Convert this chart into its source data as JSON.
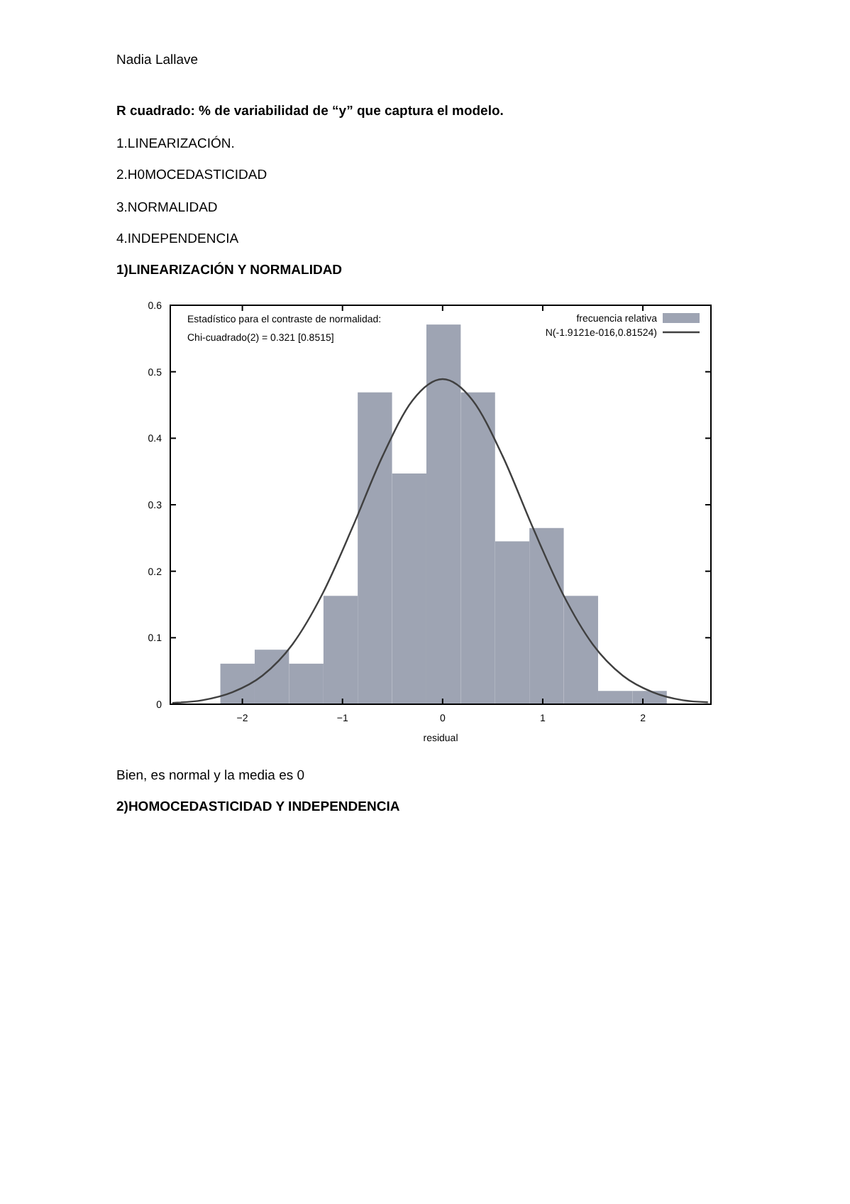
{
  "chart_data": {
    "type": "histogram",
    "title": "1)LINEARIZACIÓN Y NORMALIDAD",
    "xlabel": "residual",
    "annotations": [
      "Nadia Lallave",
      "R cuadrado: % de variabilidad de “y” que captura el modelo.",
      "1.LINEARIZACIÓN.",
      "2.H0MOCEDASTICIDAD",
      "3.NORMALIDAD",
      "4.INDEPENDENCIA",
      "Estadístico para el contraste de normalidad:",
      "Chi-cuadrado(2) = 0.321 [0.8515]",
      "Bien, es normal y la media es 0",
      "2)HOMOCEDASTICIDAD Y INDEPENDENCIA"
    ],
    "series": [
      {
        "name": "frecuencia relativa",
        "color": "#9ea4b3",
        "bins": [
          -2.22,
          -1.877,
          -1.534,
          -1.19,
          -0.848,
          -0.505,
          -0.162,
          0.181,
          0.524,
          0.867,
          1.21,
          1.553,
          1.896,
          2.239
        ],
        "values": [
          0.061,
          0.082,
          0.061,
          0.163,
          0.469,
          0.347,
          0.571,
          0.469,
          0.245,
          0.265,
          0.163,
          0.02,
          0.02
        ]
      },
      {
        "type": "line",
        "name": "N(-1.9121e-016,0.81524)",
        "color": "#404040",
        "x": [
          -2.7,
          -2.4,
          -2.1,
          -1.8,
          -1.5,
          -1.2,
          -0.9,
          -0.6,
          -0.3,
          0,
          0.3,
          0.6,
          0.9,
          1.2,
          1.5,
          1.8,
          2.1,
          2.4,
          2.65
        ],
        "values": [
          0.002,
          0.006,
          0.018,
          0.043,
          0.09,
          0.166,
          0.266,
          0.373,
          0.457,
          0.489,
          0.457,
          0.373,
          0.266,
          0.166,
          0.09,
          0.043,
          0.018,
          0.006,
          0.003
        ]
      }
    ],
    "xlim": [
      -2.72,
      2.68
    ],
    "ylim": [
      0,
      0.6
    ],
    "xticks": [
      -2,
      -1,
      0,
      1,
      2
    ],
    "yticks": [
      0,
      0.1,
      0.2,
      0.3,
      0.4,
      0.5,
      0.6
    ],
    "legend": "top right",
    "grid": false,
    "line_style": "solid",
    "marker": "none"
  }
}
